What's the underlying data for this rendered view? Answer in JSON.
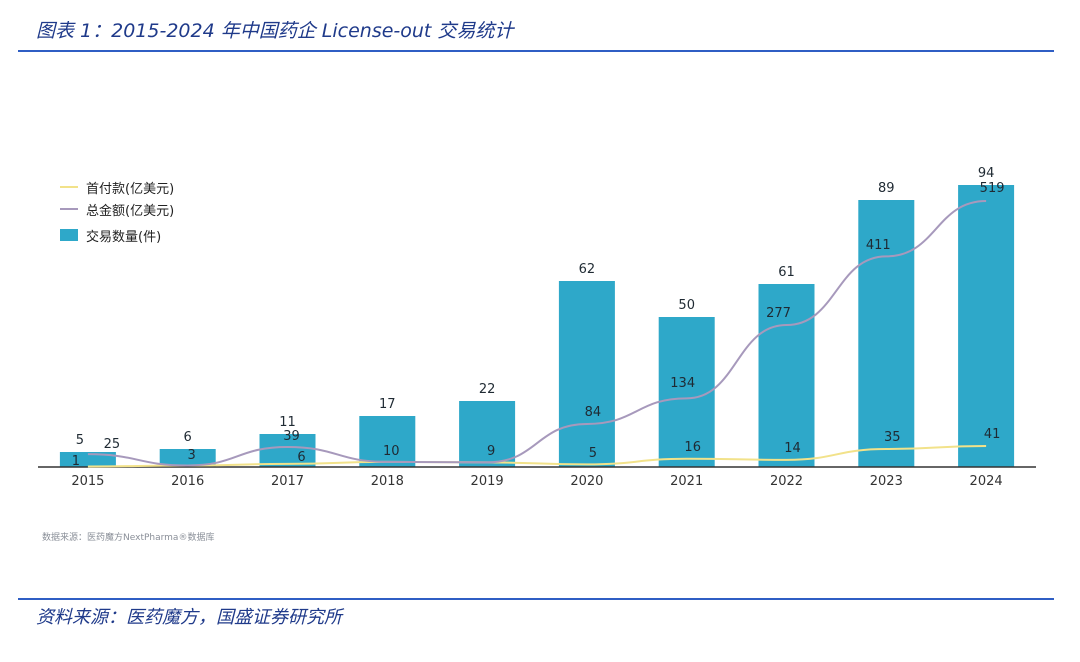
{
  "header": {
    "title": "图表 1：2015-2024 年中国药企 License-out 交易统计"
  },
  "footer": {
    "source": "资料来源：医药魔方，国盛证券研究所"
  },
  "watermark": {
    "note": "数据来源：医药魔方NextPharma®数据库"
  },
  "chart_data": {
    "type": "bar",
    "categories": [
      "2015",
      "2016",
      "2017",
      "2018",
      "2019",
      "2020",
      "2021",
      "2022",
      "2023",
      "2024"
    ],
    "series": [
      {
        "name": "交易数量(件)",
        "type": "bar",
        "color": "#2ea8c9",
        "values": [
          5,
          6,
          11,
          17,
          22,
          62,
          50,
          61,
          89,
          94
        ]
      },
      {
        "name": "首付款(亿美元)",
        "type": "line",
        "color": "#f2e28a",
        "values": [
          1,
          3,
          6,
          10,
          9,
          5,
          16,
          14,
          35,
          41
        ]
      },
      {
        "name": "总金额(亿美元)",
        "type": "line",
        "color": "#a799bc",
        "values": [
          25,
          3,
          39,
          10,
          9,
          84,
          134,
          277,
          411,
          519
        ]
      }
    ],
    "legend_position": "top-left",
    "grid": false
  }
}
